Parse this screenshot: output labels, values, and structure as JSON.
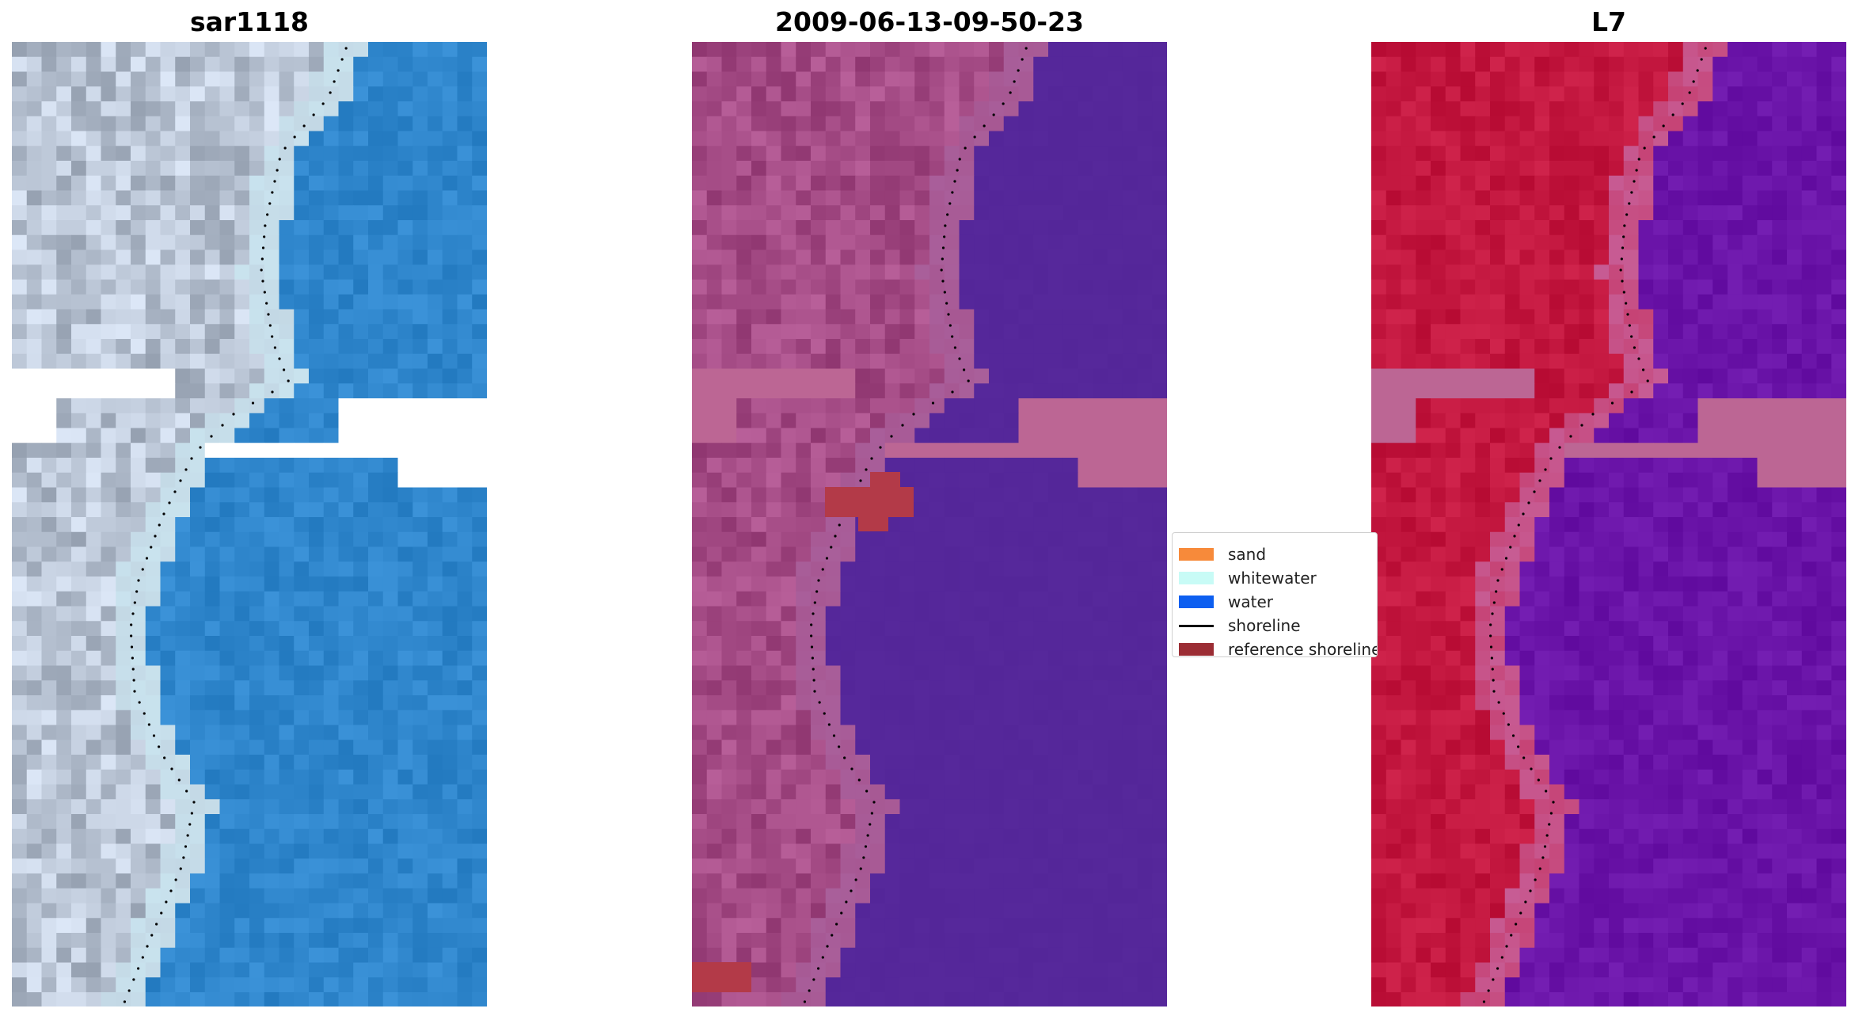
{
  "panels": [
    {
      "title": "sar1118",
      "style": "rgb"
    },
    {
      "title": "2009-06-13-09-50-23",
      "style": "classified"
    },
    {
      "title": "L7",
      "style": "index"
    }
  ],
  "legend": {
    "items": [
      {
        "label": "sand",
        "color": "#f78a3a",
        "kind": "patch"
      },
      {
        "label": "whitewater",
        "color": "#c8fbf6",
        "kind": "patch"
      },
      {
        "label": "water",
        "color": "#0d5ff0",
        "kind": "patch"
      },
      {
        "label": "shoreline",
        "color": "#000000",
        "kind": "line"
      },
      {
        "label": "reference shoreline",
        "color": "#9b2d34",
        "kind": "patch"
      }
    ]
  },
  "colors": {
    "land_rgb": "#b9c4d4",
    "water_rgb": "#2f86cc",
    "classified_land": "#a44b85",
    "classified_water": "#55279a",
    "nodata_band": "#bc6694",
    "index_land": "#c3173f",
    "index_water": "#6a14a8",
    "shoreline_dots": "#000000"
  }
}
